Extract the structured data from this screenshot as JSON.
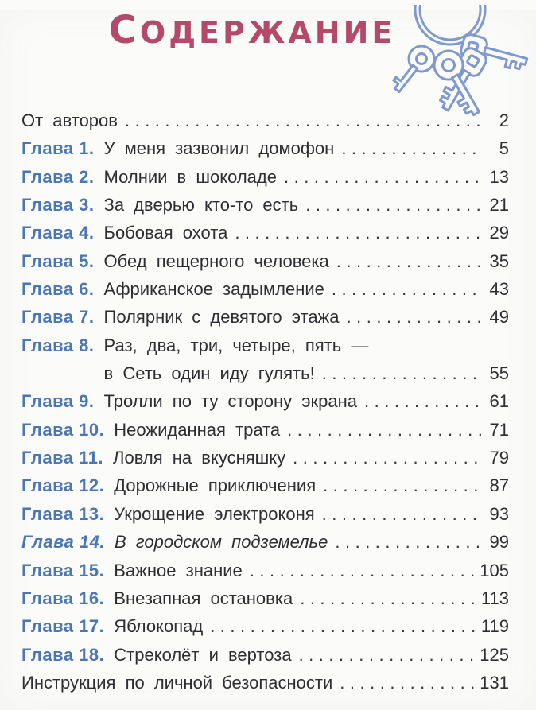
{
  "page_title": "Содержание",
  "colors": {
    "title_pink": "#b5496a",
    "chapter_blue": "#4a77b4",
    "body_text": "#2e2e32",
    "keys_blue": "#7d99cf"
  },
  "icons": {
    "keys": "keys-bunch-icon"
  },
  "toc": {
    "items": [
      {
        "label": "",
        "title": "От авторов",
        "page": "2"
      },
      {
        "label": "Глава 1.",
        "title": "У меня зазвонил домофон",
        "page": "5"
      },
      {
        "label": "Глава 2.",
        "title": "Молнии в шоколаде",
        "page": "13"
      },
      {
        "label": "Глава 3.",
        "title": "За дверью кто-то есть",
        "page": "21"
      },
      {
        "label": "Глава 4.",
        "title": "Бобовая охота",
        "page": "29"
      },
      {
        "label": "Глава 5.",
        "title": "Обед пещерного человека",
        "page": "35"
      },
      {
        "label": "Глава 6.",
        "title": "Африканское задымление",
        "page": "43"
      },
      {
        "label": "Глава 7.",
        "title": "Полярник с девятого этажа",
        "page": "49"
      },
      {
        "label": "Глава 8.",
        "title_lines": [
          "Раз, два, три, четыре, пять —",
          "в Сеть один иду гулять!"
        ],
        "page": "55"
      },
      {
        "label": "Глава 9.",
        "title": "Тролли по ту сторону экрана",
        "page": "61"
      },
      {
        "label": "Глава 10.",
        "title": "Неожиданная трата",
        "page": "71"
      },
      {
        "label": "Глава 11.",
        "title": "Ловля на вкусняшку",
        "page": "79"
      },
      {
        "label": "Глава 12.",
        "title": "Дорожные приключения",
        "page": "87"
      },
      {
        "label": "Глава 13.",
        "title": "Укрощение электроконя",
        "page": "93"
      },
      {
        "label": "Глава 14.",
        "title": "В городском подземелье",
        "page": "99",
        "italic": true
      },
      {
        "label": "Глава 15.",
        "title": "Важное знание",
        "page": "105"
      },
      {
        "label": "Глава 16.",
        "title": "Внезапная остановка",
        "page": "113"
      },
      {
        "label": "Глава 17.",
        "title": "Яблокопад",
        "page": "119"
      },
      {
        "label": "Глава 18.",
        "title": "Стреколёт и вертоза",
        "page": "125"
      },
      {
        "label": "",
        "title": "Инструкция по личной безопасности",
        "page": "131"
      }
    ]
  }
}
